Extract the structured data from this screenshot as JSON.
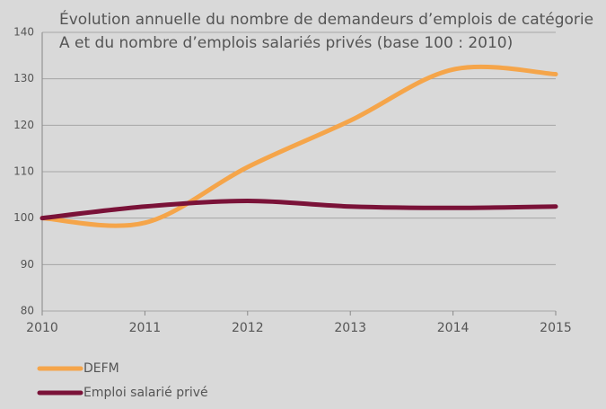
{
  "chart_data": {
    "type": "line",
    "title": [
      "Évolution annuelle du nombre de demandeurs d’emplois de catégorie",
      "A et du nombre d’emplois salariés privés (base 100 : 2010)"
    ],
    "x": [
      2010,
      2011,
      2012,
      2013,
      2014,
      2015
    ],
    "series": [
      {
        "name": "DEFM",
        "color": "#f5a54a",
        "values": [
          100,
          99,
          111,
          121,
          132,
          131
        ]
      },
      {
        "name": "Emploi salarié privé",
        "color": "#7a1238",
        "values": [
          100,
          102.5,
          103.7,
          102.5,
          102.2,
          102.5
        ]
      }
    ],
    "xlim": [
      2010,
      2015
    ],
    "xticks": [
      2010,
      2011,
      2012,
      2013,
      2014,
      2015
    ],
    "ylim": [
      80,
      140
    ],
    "yticks": [
      80,
      90,
      100,
      110,
      120,
      130,
      140
    ],
    "grid": true
  }
}
